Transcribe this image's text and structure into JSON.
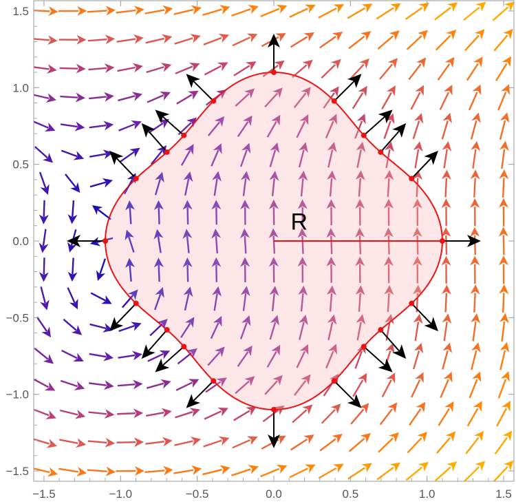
{
  "chart_data": {
    "type": "vector-field",
    "title": "",
    "xlabel": "",
    "ylabel": "",
    "xlim": [
      -1.5,
      1.5
    ],
    "ylim": [
      -1.5,
      1.5
    ],
    "x_ticks": [
      "-1.5",
      "-1.0",
      "-0.5",
      "0.0",
      "0.5",
      "1.0",
      "1.5"
    ],
    "y_ticks": [
      "-1.5",
      "-1.0",
      "-0.5",
      "0.0",
      "0.5",
      "1.0",
      "1.5"
    ],
    "grid": false,
    "region": {
      "label": "R",
      "label_position": [
        0.2,
        0.2
      ],
      "boundary": "r(theta) = 1 + 0.1*cos(4*theta)",
      "fill": "#fde2e4",
      "stroke": "#ee1111",
      "radius_segment": {
        "from": [
          0,
          0
        ],
        "to": [
          1.1,
          0
        ]
      }
    },
    "normal_vectors": {
      "color": "#000000",
      "base_points": [
        [
          1.1,
          0
        ],
        [
          0.95,
          0.43
        ],
        [
          0.71,
          0.59
        ],
        [
          0.58,
          0.68
        ],
        [
          0.41,
          0.95
        ],
        [
          0,
          1.12
        ],
        [
          -0.41,
          0.95
        ],
        [
          -0.58,
          0.68
        ],
        [
          -0.71,
          0.59
        ],
        [
          -0.95,
          0.43
        ],
        [
          -1.1,
          0
        ],
        [
          -0.95,
          -0.43
        ],
        [
          -0.71,
          -0.59
        ],
        [
          -0.58,
          -0.68
        ],
        [
          -0.41,
          -0.95
        ],
        [
          0,
          -1.12
        ],
        [
          0.41,
          -0.95
        ],
        [
          0.58,
          -0.68
        ],
        [
          0.71,
          -0.59
        ],
        [
          0.95,
          -0.43
        ]
      ]
    },
    "field": {
      "grid_n": 17,
      "color_scale": [
        "#1a0fb5",
        "#6a1fa8",
        "#b03b7e",
        "#e0594f",
        "#ff7f0a",
        "#ffae00"
      ]
    }
  }
}
